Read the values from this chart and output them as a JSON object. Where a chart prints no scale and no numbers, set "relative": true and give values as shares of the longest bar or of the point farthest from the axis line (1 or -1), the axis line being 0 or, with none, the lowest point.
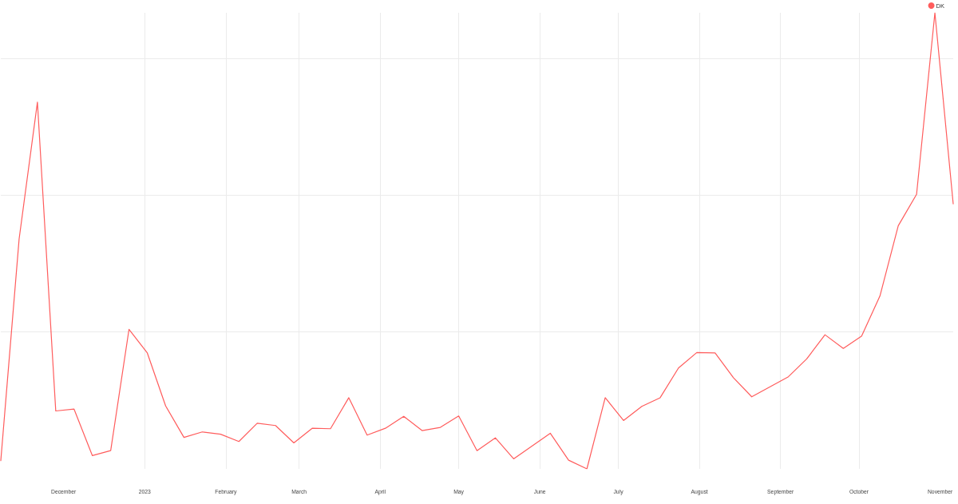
{
  "chart_data": {
    "type": "line",
    "x": [
      "2022-11-07",
      "2022-11-14",
      "2022-11-21",
      "2022-11-28",
      "2022-12-05",
      "2022-12-12",
      "2022-12-19",
      "2022-12-26",
      "2023-01-02",
      "2023-01-09",
      "2023-01-16",
      "2023-01-23",
      "2023-01-30",
      "2023-02-06",
      "2023-02-13",
      "2023-02-20",
      "2023-02-27",
      "2023-03-06",
      "2023-03-13",
      "2023-03-20",
      "2023-03-27",
      "2023-04-03",
      "2023-04-10",
      "2023-04-17",
      "2023-04-24",
      "2023-05-01",
      "2023-05-08",
      "2023-05-15",
      "2023-05-22",
      "2023-05-29",
      "2023-06-05",
      "2023-06-12",
      "2023-06-19",
      "2023-06-26",
      "2023-07-03",
      "2023-07-10",
      "2023-07-17",
      "2023-07-24",
      "2023-07-31",
      "2023-08-07",
      "2023-08-14",
      "2023-08-21",
      "2023-08-28",
      "2023-09-04",
      "2023-09-11",
      "2023-09-18",
      "2023-09-25",
      "2023-10-02",
      "2023-10-09",
      "2023-10-16",
      "2023-10-23",
      "2023-10-30",
      "2023-11-06"
    ],
    "series": [
      {
        "name": "DK",
        "color": "#ff5c5c",
        "values": [
          0.018,
          0.504,
          0.804,
          0.127,
          0.131,
          0.029,
          0.04,
          0.306,
          0.254,
          0.138,
          0.069,
          0.081,
          0.076,
          0.06,
          0.1,
          0.095,
          0.057,
          0.089,
          0.088,
          0.156,
          0.074,
          0.089,
          0.115,
          0.084,
          0.091,
          0.116,
          0.04,
          0.068,
          0.022,
          0.05,
          0.078,
          0.019,
          0,
          0.156,
          0.106,
          0.137,
          0.156,
          0.221,
          0.255,
          0.254,
          0.2,
          0.158,
          0.18,
          0.202,
          0.241,
          0.294,
          0.264,
          0.291,
          0.379,
          0.533,
          0.602,
          1,
          0.581
        ]
      }
    ],
    "relative": true,
    "xlim": [
      "2022-11-07",
      "2023-11-06"
    ],
    "xticks": [
      {
        "value": "2022-12-01",
        "label": "December"
      },
      {
        "value": "2023-01-01",
        "label": "2023"
      },
      {
        "value": "2023-02-01",
        "label": "February"
      },
      {
        "value": "2023-03-01",
        "label": "March"
      },
      {
        "value": "2023-04-01",
        "label": "April"
      },
      {
        "value": "2023-05-01",
        "label": "May"
      },
      {
        "value": "2023-06-01",
        "label": "June"
      },
      {
        "value": "2023-07-01",
        "label": "July"
      },
      {
        "value": "2023-08-01",
        "label": "August"
      },
      {
        "value": "2023-09-01",
        "label": "September"
      },
      {
        "value": "2023-10-01",
        "label": "October"
      },
      {
        "value": "2023-11-01",
        "label": "November"
      }
    ],
    "grid": true,
    "legend": "top right"
  }
}
